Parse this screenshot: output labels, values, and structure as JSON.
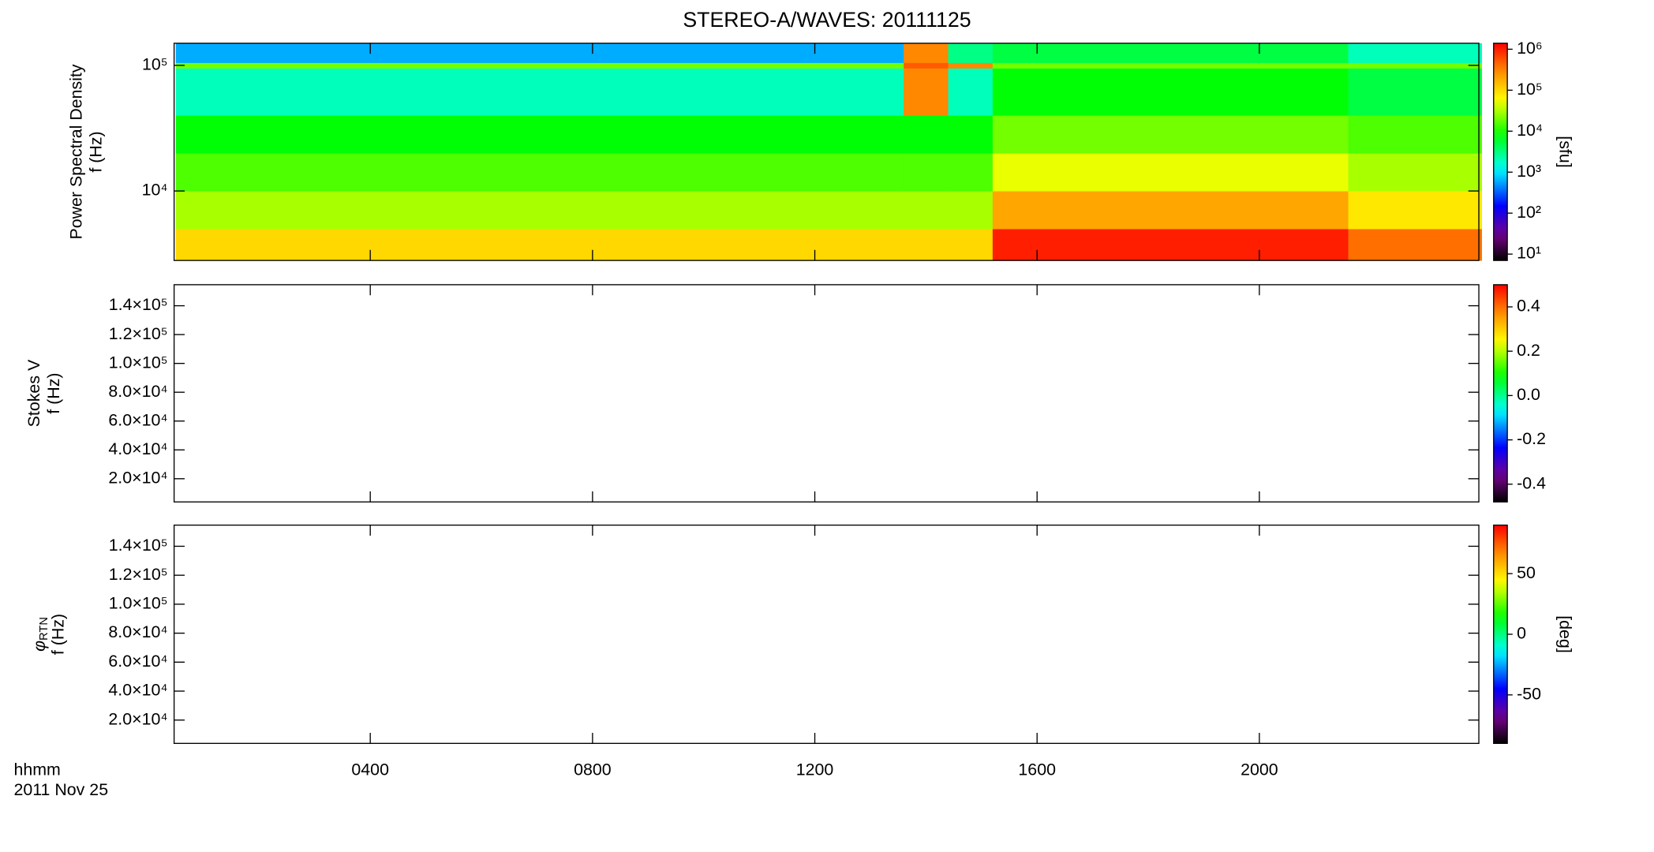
{
  "chart_data": [
    {
      "type": "heatmap",
      "title": "STEREO-A/WAVES: 20111125",
      "ylabel": "Power Spectral Density",
      "yunit": "f (Hz)",
      "ylog": true,
      "ylim": [
        2800,
        150000
      ],
      "yticks": [
        {
          "value": 10000,
          "label": "10⁴"
        },
        {
          "value": 100000,
          "label": "10⁵"
        }
      ],
      "x_edges": [
        0.5,
        13.6,
        14.4,
        15.2,
        21.6,
        24
      ],
      "y_edges": [
        2800,
        5000,
        10000,
        20000,
        40000,
        95000,
        105000,
        150000
      ],
      "z": [
        [
          100000,
          100000,
          100000,
          1000000,
          400000
        ],
        [
          30000,
          30000,
          30000,
          200000,
          80000
        ],
        [
          15000,
          15000,
          15000,
          50000,
          30000
        ],
        [
          8000,
          8000,
          8000,
          20000,
          15000
        ],
        [
          2000,
          300000,
          2000,
          8000,
          5000
        ],
        [
          20000,
          500000,
          300000,
          20000,
          20000
        ],
        [
          600,
          300000,
          3000,
          5000,
          2000
        ]
      ],
      "colormap": "rainbow",
      "zlog": true,
      "zlim": [
        7,
        1400000
      ],
      "zlabel": "[sfu]",
      "zticks": [
        {
          "value": 10,
          "label": "10¹"
        },
        {
          "value": 100,
          "label": "10²"
        },
        {
          "value": 1000,
          "label": "10³"
        },
        {
          "value": 10000,
          "label": "10⁴"
        },
        {
          "value": 100000,
          "label": "10⁵"
        },
        {
          "value": 1000000,
          "label": "10⁶"
        }
      ]
    },
    {
      "type": "heatmap",
      "ylabel": "Stokes V",
      "yunit": "f (Hz)",
      "ylog": false,
      "ylim": [
        3900,
        154600
      ],
      "yticks": [
        {
          "value": 20000,
          "label": "2.0×10⁴"
        },
        {
          "value": 40000,
          "label": "4.0×10⁴"
        },
        {
          "value": 60000,
          "label": "6.0×10⁴"
        },
        {
          "value": 80000,
          "label": "8.0×10⁴"
        },
        {
          "value": 100000,
          "label": "1.0×10⁵"
        },
        {
          "value": 120000,
          "label": "1.2×10⁵"
        },
        {
          "value": 140000,
          "label": "1.4×10⁵"
        }
      ],
      "colormap": "rainbow",
      "zlog": false,
      "zlim": [
        -0.48,
        0.5
      ],
      "zticks": [
        -0.4,
        -0.2,
        {
          "value": 0,
          "label": "0.0"
        },
        0.2,
        0.4
      ]
    },
    {
      "type": "heatmap",
      "ylabel_symbol": "φ",
      "ylabel_subscript": "RTN",
      "yunit": "f (Hz)",
      "ylog": false,
      "ylim": [
        3900,
        154600
      ],
      "yticks": [
        {
          "value": 20000,
          "label": "2.0×10⁴"
        },
        {
          "value": 40000,
          "label": "4.0×10⁴"
        },
        {
          "value": 60000,
          "label": "6.0×10⁴"
        },
        {
          "value": 80000,
          "label": "8.0×10⁴"
        },
        {
          "value": 100000,
          "label": "1.0×10⁵"
        },
        {
          "value": 120000,
          "label": "1.2×10⁵"
        },
        {
          "value": 140000,
          "label": "1.4×10⁵"
        }
      ],
      "colormap": "rainbow",
      "zlog": false,
      "zlim": [
        -90,
        90
      ],
      "zlabel": "[deg]",
      "zticks": [
        -50,
        0,
        50
      ],
      "xlabel": "hhmm",
      "xsublabel": "2011 Nov 25",
      "xlim": [
        0.47,
        23.95
      ],
      "xticks": [
        {
          "value": 4,
          "label": "0400"
        },
        {
          "value": 8,
          "label": "0800"
        },
        {
          "value": 12,
          "label": "1200"
        },
        {
          "value": 16,
          "label": "1600"
        },
        {
          "value": 20,
          "label": "2000"
        }
      ]
    }
  ]
}
